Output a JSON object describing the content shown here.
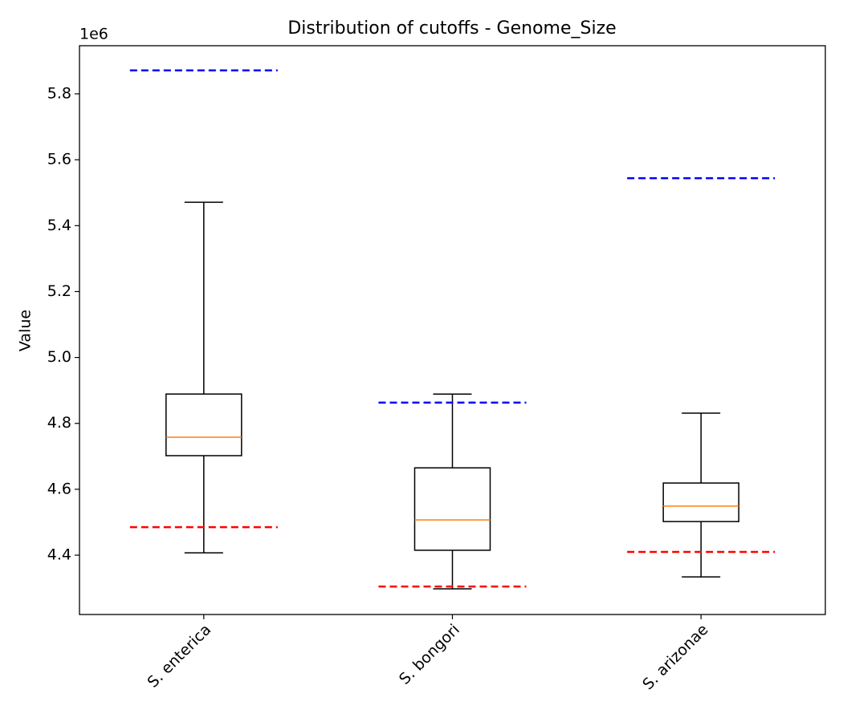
{
  "chart_data": {
    "type": "box",
    "title": "Distribution of cutoffs - Genome_Size",
    "ylabel": "Value",
    "y_offset_label": "1e6",
    "categories": [
      "S. enterica",
      "S. bongori",
      "S. arizonae"
    ],
    "boxes": [
      {
        "whisker_low": 4.407,
        "q1": 4.702,
        "median": 4.758,
        "q3": 4.889,
        "whisker_high": 5.471
      },
      {
        "whisker_low": 4.298,
        "q1": 4.415,
        "median": 4.507,
        "q3": 4.665,
        "whisker_high": 4.889
      },
      {
        "whisker_low": 4.334,
        "q1": 4.502,
        "median": 4.549,
        "q3": 4.619,
        "whisker_high": 4.831
      }
    ],
    "upper_cutoff": [
      5.871,
      4.863,
      5.544
    ],
    "upper_cutoff_color": "#0000ff",
    "lower_cutoff": [
      4.485,
      4.305,
      4.41
    ],
    "lower_cutoff_color": "#ff0000",
    "box_color": "#000000",
    "median_color": "#ff7f0e",
    "ylim": [
      4.22,
      5.946
    ],
    "yticks": [
      4.4,
      4.6,
      4.8,
      {
        "value": 5,
        "label": "5.0"
      },
      5.2,
      5.4,
      5.6,
      5.8
    ],
    "grid": false
  }
}
